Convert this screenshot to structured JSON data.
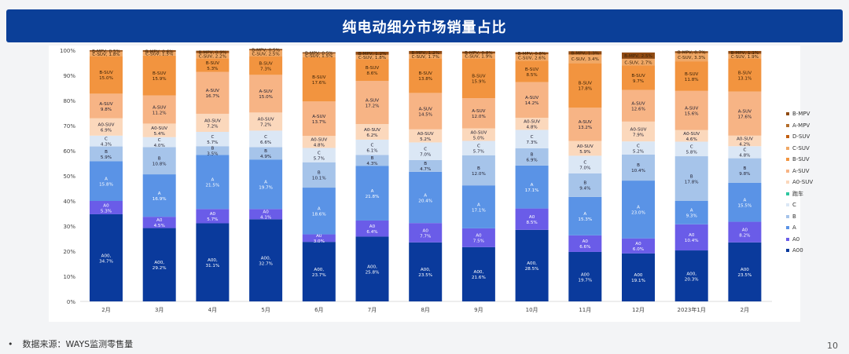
{
  "header": {
    "title": "纯电动细分市场销量占比"
  },
  "footer": {
    "bullet": "•",
    "source": "数据来源：WAYS监测零售量",
    "page_number": "10"
  },
  "colors": {
    "A00": "#0a3a9c",
    "A0": "#6a5ce8",
    "A": "#5a93e6",
    "B": "#a6c4ea",
    "C": "#dbe7f5",
    "跑车": "#2ec6a0",
    "A0-SUV": "#fbd8bc",
    "A-SUV": "#f7b485",
    "B-SUV": "#f2943f",
    "C-SUV": "#f0a866",
    "D-SUV": "#c25f11",
    "A-MPV": "#b36e2c",
    "B-MPV": "#8f4a12"
  },
  "chart_data": {
    "type": "bar",
    "stacked": true,
    "title": "纯电动细分市场销量占比",
    "xlabel": "",
    "ylabel": "",
    "ylim": [
      0,
      100
    ],
    "yticks": [
      "0%",
      "10%",
      "20%",
      "30%",
      "40%",
      "50%",
      "60%",
      "70%",
      "80%",
      "90%",
      "100%"
    ],
    "categories": [
      "2月",
      "3月",
      "4月",
      "5月",
      "6月",
      "7月",
      "8月",
      "9月",
      "10月",
      "11月",
      "12月",
      "2023年1月",
      "2月"
    ],
    "series": [
      {
        "name": "A00",
        "values": [
          34.7,
          29.2,
          31.1,
          32.7,
          23.7,
          25.8,
          23.5,
          21.6,
          28.5,
          19.7,
          19.1,
          20.3,
          23.5
        ],
        "labels": [
          "A00,\n34.7%",
          "A00,\n29.2%",
          "A00,\n31.1%",
          "A00,\n32.7%",
          "A00,\n23.7%",
          "A00,\n25.8%",
          "A00,\n23.5%",
          "A00,\n21.6%",
          "A00,\n28.5%",
          "A00\n19.7%",
          "A00\n19.1%",
          "A00,\n20.3%",
          "A00\n23.5%"
        ]
      },
      {
        "name": "A0",
        "values": [
          5.3,
          4.5,
          5.7,
          4.1,
          3.0,
          6.4,
          7.7,
          7.5,
          8.5,
          6.6,
          6.0,
          10.4,
          8.2
        ],
        "labels": [
          "A0\n5.3%",
          "A0\n4.5%",
          "A0\n5.7%",
          "A0\n4.1%",
          "A0\n3.0%",
          "A0\n6.4%",
          "A0\n7.7%",
          "A0\n7.5%",
          "A0\n8.5%",
          "A0\n6.6%",
          "A0\n6.0%",
          "A0\n10.4%",
          "A0\n8.2%"
        ]
      },
      {
        "name": "A",
        "values": [
          15.8,
          16.9,
          21.5,
          19.7,
          18.6,
          21.8,
          20.4,
          17.1,
          17.1,
          15.3,
          23.0,
          9.3,
          15.5
        ],
        "labels": [
          "A\n15.8%",
          "A\n16.9%",
          "A\n21.5%",
          "A\n19.7%",
          "A\n18.6%",
          "A\n21.8%",
          "A\n20.4%",
          "A\n17.1%",
          "A\n17.1%",
          "A\n15.3%",
          "A\n23.0%",
          "A\n9.3%",
          "A\n15.5%"
        ]
      },
      {
        "name": "B",
        "values": [
          5.9,
          10.8,
          3.5,
          4.9,
          10.1,
          4.3,
          4.7,
          12.0,
          6.9,
          9.4,
          10.4,
          17.8,
          9.8
        ],
        "labels": [
          "B\n5.9%",
          "B\n10.8%",
          "B\n3.5%",
          "B\n4.9%",
          "B\n10.1%",
          "B\n4.3%",
          "B\n4.7%",
          "B\n12.0%",
          "B\n6.9%",
          "B\n9.4%",
          "B\n10.4%",
          "B\n17.8%",
          "B\n9.8%"
        ]
      },
      {
        "name": "C",
        "values": [
          4.3,
          4.0,
          5.7,
          6.6,
          5.7,
          6.1,
          7.0,
          5.7,
          7.3,
          7.0,
          5.2,
          5.8,
          4.8
        ],
        "labels": [
          "C\n4.3%",
          "C\n4.0%",
          "C\n5.7%",
          "C\n6.6%",
          "C\n5.7%",
          "C\n6.1%",
          "C\n7.0%",
          "C\n5.7%",
          "C\n7.3%",
          "C\n7.0%",
          "C\n5.2%",
          "C\n5.8%",
          "C\n4.8%"
        ]
      },
      {
        "name": "跑车",
        "values": [
          0,
          0,
          0,
          0,
          0,
          0,
          0,
          0,
          0,
          0,
          0,
          0,
          0
        ],
        "labels": [
          "",
          "",
          "",
          "",
          "",
          "",
          "",
          "",
          "",
          "",
          "",
          "",
          ""
        ]
      },
      {
        "name": "A0-SUV",
        "values": [
          6.9,
          5.4,
          7.2,
          7.2,
          4.8,
          6.2,
          5.2,
          5.0,
          4.8,
          5.9,
          7.9,
          4.6,
          4.2
        ],
        "labels": [
          "A0-SUV\n6.9%",
          "A0-SUV\n5.4%",
          "A0-SUV\n7.2%",
          "A0-SUV\n7.2%",
          "A0-SUV\n4.8%",
          "A0-SUV\n6.2%",
          "A0-SUV\n5.2%",
          "A0-SUV\n5.0%",
          "A0-SUV\n4.8%",
          "A0-SUV\n5.9%",
          "A0-SUV\n7.9%",
          "A0-SUV\n4.6%",
          "A0-SUV\n4.2%"
        ]
      },
      {
        "name": "A-SUV",
        "values": [
          9.8,
          11.2,
          16.7,
          15.0,
          13.7,
          17.2,
          14.5,
          12.0,
          14.2,
          13.2,
          12.6,
          15.6,
          17.6
        ],
        "labels": [
          "A-SUV\n9.8%",
          "A-SUV\n11.2%",
          "A-SUV\n16.7%",
          "A-SUV\n15.0%",
          "A-SUV\n13.7%",
          "A-SUV\n17.2%",
          "A-SUV\n14.5%",
          "A-SUV\n12.0%",
          "A-SUV\n14.2%",
          "A-SUV\n13.2%",
          "A-SUV\n12.6%",
          "A-SUV\n15.6%",
          "A-SUV\n17.6%"
        ]
      },
      {
        "name": "B-SUV",
        "values": [
          15.0,
          15.9,
          5.3,
          7.3,
          17.6,
          8.6,
          13.8,
          15.9,
          8.5,
          17.8,
          9.7,
          11.8,
          13.1
        ],
        "labels": [
          "B-SUV\n15.0%",
          "B-SUV\n15.9%",
          "B-SUV\n5.3%",
          "B-SUV\n7.3%",
          "B-SUV\n17.6%",
          "B-SUV\n8.6%",
          "B-SUV\n13.8%",
          "B-SUV\n15.9%",
          "B-SUV\n8.5%",
          "B-SUV\n17.8%",
          "B-SUV\n9.7%",
          "B-SUV\n11.8%",
          "B-SUV\n13.1%"
        ]
      },
      {
        "name": "C-SUV",
        "values": [
          1.8,
          1.5,
          2.2,
          2.5,
          1.5,
          1.8,
          1.7,
          1.9,
          2.6,
          3.4,
          2.7,
          3.3,
          1.9
        ],
        "labels": [
          "C-SUV, 1.8%",
          "C-SUV, 1.5%",
          "C-SUV, 2.2%",
          "C-SUV, 2.5%",
          "C-SUV, 1.5%",
          "C-SUV, 1.8%",
          "C-SUV, 1.7%",
          "C-SUV, 1.9%",
          "C-SUV, 2.6%",
          "C-SUV, 3.4%",
          "C-SUV, 2.7%",
          "C-SUV, 3.3%",
          "C-SUV, 1.9%"
        ]
      },
      {
        "name": "D-SUV",
        "values": [
          0,
          0,
          0,
          0,
          0,
          0,
          0,
          0,
          0,
          0,
          0,
          0,
          0
        ],
        "labels": [
          "",
          "",
          "",
          "",
          "",
          "",
          "",
          "",
          "",
          "",
          "",
          "",
          ""
        ]
      },
      {
        "name": "A-MPV",
        "values": [
          0,
          0,
          0,
          0,
          0,
          0,
          0,
          0,
          0,
          0,
          0,
          0,
          0
        ],
        "labels": [
          "",
          "",
          "",
          "",
          "",
          "",
          "",
          "",
          "",
          "",
          "",
          "",
          ""
        ]
      },
      {
        "name": "B-MPV",
        "values": [
          0.5,
          0.6,
          0.9,
          0.5,
          0.5,
          1.2,
          1.2,
          0.8,
          0.8,
          1.3,
          2.5,
          0.7,
          1.1
        ],
        "labels": [
          "B-MPV, 0.5%",
          "B-MPV, 0.6%",
          "B-MPV, 0.9%",
          "B-MPV, 0.5%",
          "B-MPV, 0.5%",
          "B-MPV, 1.2%",
          "B-MPV, 1.2%",
          "B-MPV, 0.8%",
          "B-MPV, 0.8%",
          "B-MPV, 1.3%",
          "B-MPV, 2.5%",
          "B-MPV, 0.7%",
          "B-MPV, 1.1%"
        ]
      }
    ],
    "legend": [
      "B-MPV",
      "A-MPV",
      "D-SUV",
      "C-SUV",
      "B-SUV",
      "A-SUV",
      "A0-SUV",
      "跑车",
      "C",
      "B",
      "A",
      "A0",
      "A00"
    ],
    "legend_position": "right"
  }
}
